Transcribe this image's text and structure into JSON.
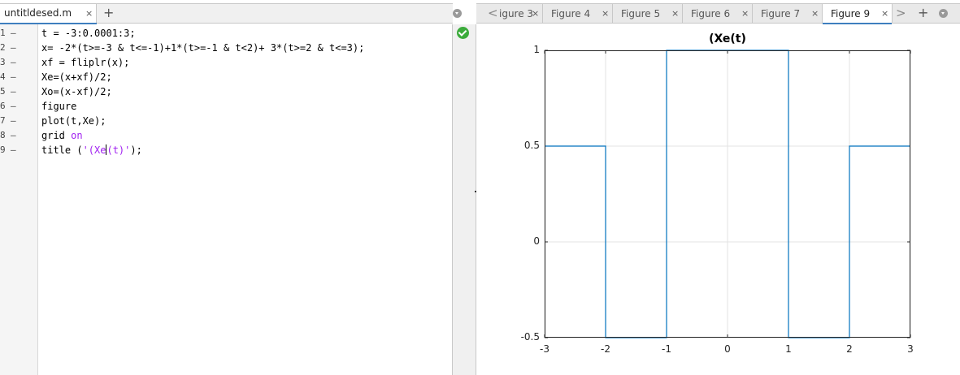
{
  "editor": {
    "tab_label": "untitldesed.m",
    "tab_close": "×",
    "add_tab": "+",
    "line_numbers": [
      "1",
      "2",
      "3",
      "4",
      "5",
      "6",
      "7",
      "8",
      "9"
    ],
    "line_dash": "–",
    "code_lines": [
      [
        {
          "t": "t = -3:0.0001:3;",
          "c": "code"
        }
      ],
      [
        {
          "t": "x= -2*(t>=-3 & t<=-1)+1*(t>=-1 & t<2)+ 3*(t>=2 & t<=3);",
          "c": "code"
        }
      ],
      [
        {
          "t": "xf = fliplr(x);",
          "c": "code"
        }
      ],
      [
        {
          "t": "Xe=(x+xf)/2;",
          "c": "code"
        }
      ],
      [
        {
          "t": "Xo=(x-xf)/2;",
          "c": "code"
        }
      ],
      [
        {
          "t": "figure",
          "c": "code"
        }
      ],
      [
        {
          "t": "plot(t,Xe);",
          "c": "code"
        }
      ],
      [
        {
          "t": "grid ",
          "c": "code"
        },
        {
          "t": "on",
          "c": "kw"
        }
      ],
      [
        {
          "t": "title (",
          "c": "code"
        },
        {
          "t": "'(Xe",
          "c": "str"
        },
        {
          "t": "",
          "c": "caret"
        },
        {
          "t": "(t)'",
          "c": "str"
        },
        {
          "t": ");",
          "c": "code"
        }
      ]
    ],
    "status_icon": "check-circle-icon"
  },
  "figures": {
    "scroll_left": "<",
    "scroll_right": ">",
    "add_tab": "+",
    "tab_close": "×",
    "tabs": [
      {
        "label": "igure 3",
        "active": false
      },
      {
        "label": "Figure 4",
        "active": false
      },
      {
        "label": "Figure 5",
        "active": false
      },
      {
        "label": "Figure 6",
        "active": false
      },
      {
        "label": "Figure 7",
        "active": false
      },
      {
        "label": "Figure 9",
        "active": true
      }
    ]
  },
  "colors": {
    "line": "#0072bd",
    "grid": "#e3e3e3",
    "axis": "#262626",
    "accent": "#3f7fbf",
    "ok": "#3bab3b"
  },
  "chart_data": {
    "type": "line",
    "title": "(Xe(t)",
    "xlabel": "",
    "ylabel": "",
    "xlim": [
      -3,
      3
    ],
    "ylim": [
      -0.5,
      1
    ],
    "xticks": [
      -3,
      -2,
      -1,
      0,
      1,
      2,
      3
    ],
    "xtick_labels": [
      "-3",
      "-2",
      "-1",
      "0",
      "1",
      "2",
      "3"
    ],
    "yticks": [
      -0.5,
      0,
      0.5,
      1
    ],
    "ytick_labels": [
      "-0.5",
      "0",
      "0.5",
      "1"
    ],
    "grid": true,
    "series": [
      {
        "x": [
          -3,
          -2,
          -2,
          -1,
          -1,
          1,
          1,
          2,
          2,
          3
        ],
        "y": [
          0.5,
          0.5,
          -0.5,
          -0.5,
          1,
          1,
          -0.5,
          -0.5,
          0.5,
          0.5
        ]
      }
    ]
  }
}
